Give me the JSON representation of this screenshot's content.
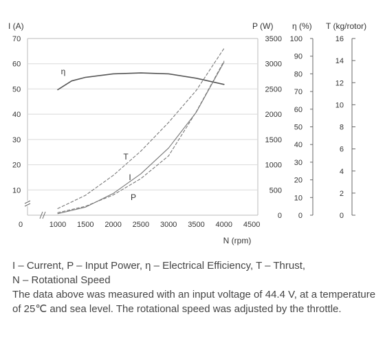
{
  "chart_data": {
    "type": "line",
    "xlabel": "N (rpm)",
    "x_ticks": [
      "0",
      "1000",
      "1500",
      "2000",
      "2500",
      "3000",
      "3500",
      "4000",
      "4500"
    ],
    "axes": {
      "current": {
        "label": "I (A)",
        "ticks": [
          "70",
          "60",
          "50",
          "40",
          "30",
          "20",
          "10"
        ],
        "range": [
          0,
          70
        ]
      },
      "power": {
        "label": "P (W)",
        "ticks": [
          "3500",
          "3000",
          "2500",
          "2000",
          "1500",
          "1000",
          "500",
          "0"
        ],
        "range": [
          0,
          3500
        ]
      },
      "efficiency": {
        "label": "η (%)",
        "ticks": [
          "100",
          "90",
          "80",
          "70",
          "60",
          "50",
          "40",
          "30",
          "20",
          "10",
          "0"
        ],
        "range": [
          0,
          100
        ]
      },
      "thrust": {
        "label": "T (kg/rotor)",
        "ticks": [
          "16",
          "14",
          "12",
          "10",
          "8",
          "6",
          "4",
          "2",
          "0"
        ],
        "range": [
          0,
          16
        ]
      }
    },
    "series": [
      {
        "name": "η",
        "axis": "efficiency",
        "style": "solid",
        "x": [
          1000,
          1250,
          1500,
          2000,
          2500,
          3000,
          3500,
          4000
        ],
        "y": [
          71,
          76,
          78,
          80,
          80.5,
          80,
          77.5,
          74
        ]
      },
      {
        "name": "I",
        "axis": "current",
        "style": "dashed",
        "x": [
          1000,
          1500,
          2000,
          2500,
          3000,
          3500,
          4000
        ],
        "y": [
          1,
          3.5,
          8,
          14.5,
          23.5,
          41,
          61
        ]
      },
      {
        "name": "T",
        "axis": "thrust",
        "style": "dashed",
        "x": [
          1000,
          1500,
          2000,
          2500,
          3000,
          3500,
          4000
        ],
        "y": [
          0.6,
          1.8,
          3.6,
          5.8,
          8.4,
          11.3,
          15.1
        ]
      },
      {
        "name": "P",
        "axis": "power",
        "style": "solid",
        "x": [
          1000,
          1500,
          2000,
          2500,
          3000,
          3500,
          4000
        ],
        "y": [
          30,
          160,
          430,
          820,
          1330,
          2040,
          3030
        ]
      }
    ]
  },
  "caption": {
    "line1": "I – Current, P – Input Power, η – Electrical Efficiency, T – Thrust,",
    "line2": "N – Rotational Speed",
    "line3": "The data above was measured with an input voltage of 44.4 V, at a temperature of 25℃ and sea level. The rotational speed was adjusted by the throttle."
  }
}
